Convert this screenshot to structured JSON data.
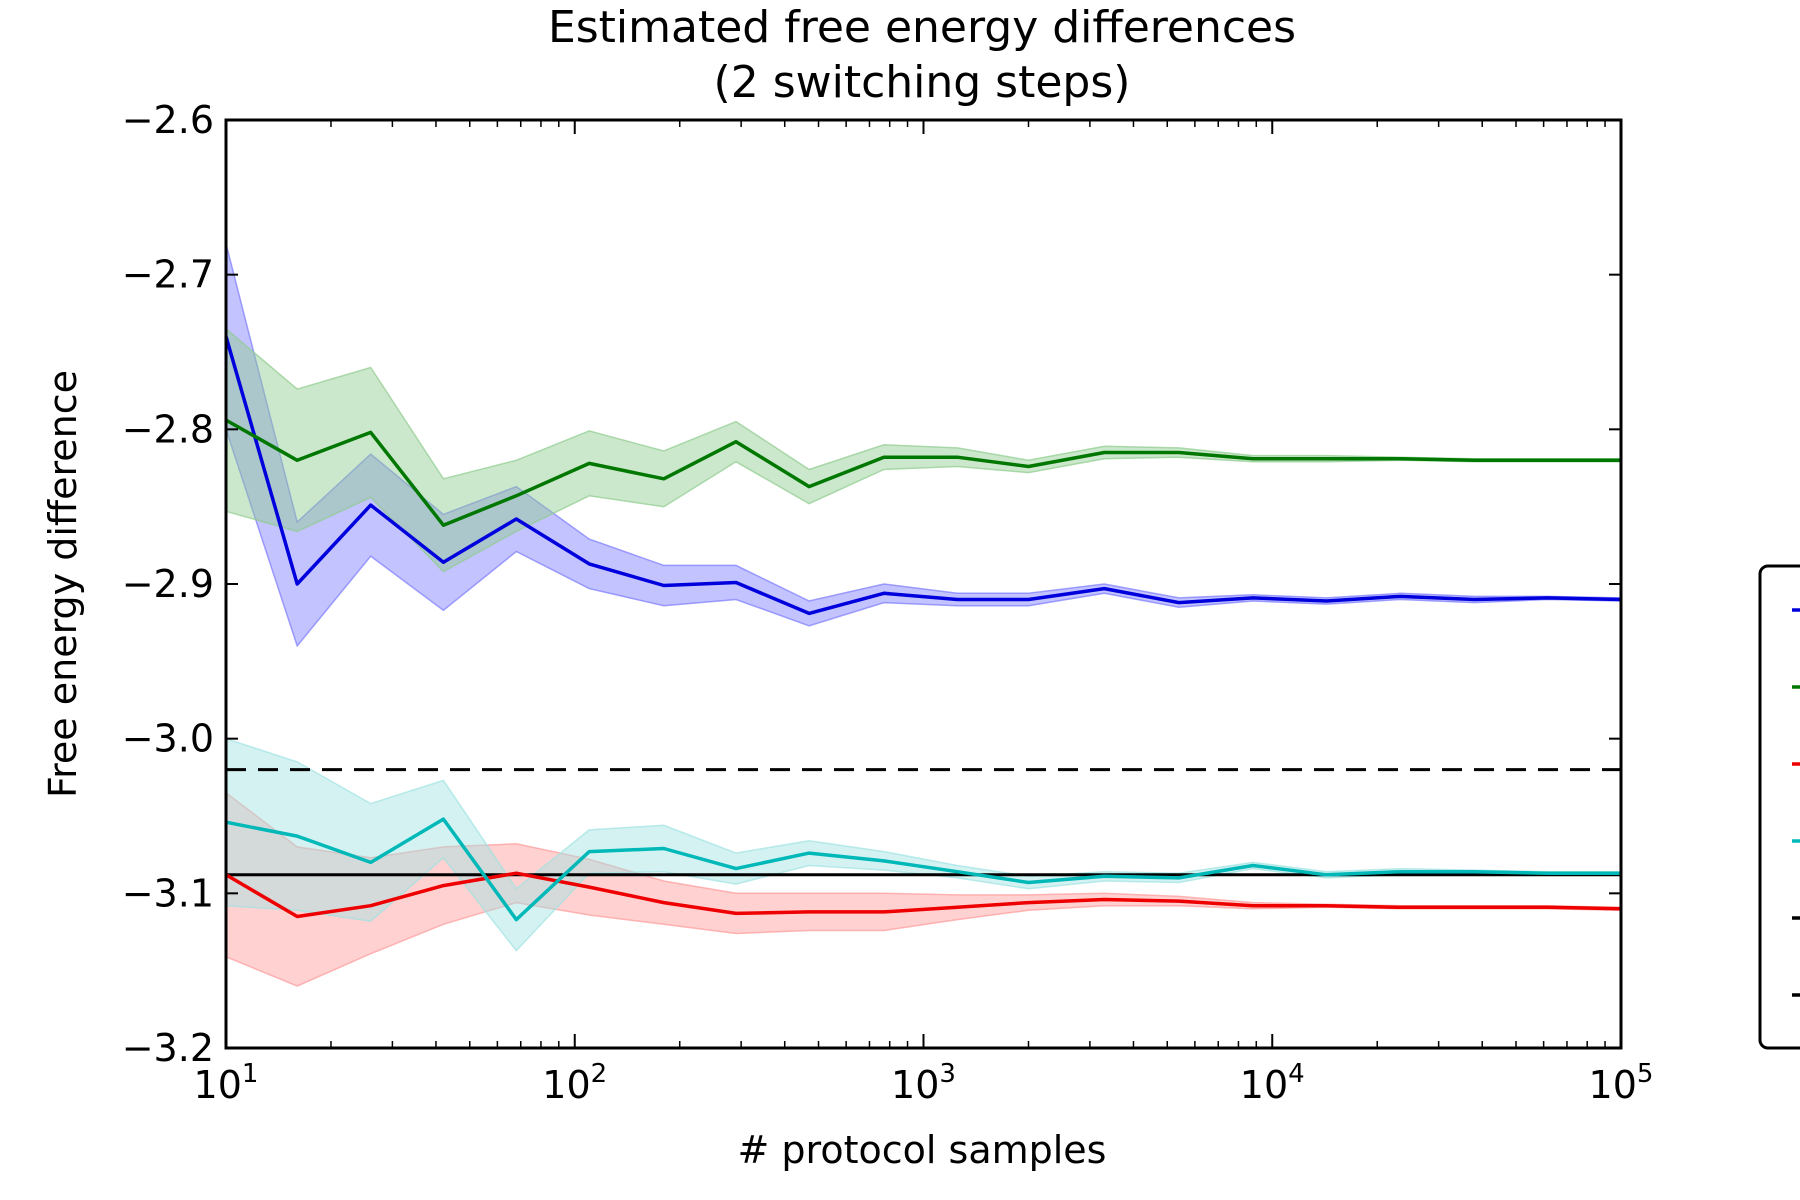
{
  "chart_data": {
    "type": "line",
    "title": "Estimated free energy differences",
    "subtitle": "(2 switching steps)",
    "xlabel": "# protocol samples",
    "ylabel": "Free energy difference",
    "xscale": "log",
    "xlim": [
      10,
      100000
    ],
    "ylim": [
      -3.2,
      -2.6
    ],
    "yticks": [
      "−2.6",
      "−2.7",
      "−2.8",
      "−2.9",
      "−3.0",
      "−3.1",
      "−3.2"
    ],
    "yticks_values": [
      -2.6,
      -2.7,
      -2.8,
      -2.9,
      -3.0,
      -3.1,
      -3.2
    ],
    "xticks": [
      {
        "value": 10,
        "base": "10",
        "exp": "1"
      },
      {
        "value": 100,
        "base": "10",
        "exp": "2"
      },
      {
        "value": 1000,
        "base": "10",
        "exp": "3"
      },
      {
        "value": 10000,
        "base": "10",
        "exp": "4"
      },
      {
        "value": 100000,
        "base": "10",
        "exp": "5"
      }
    ],
    "grid": false,
    "legend": "right",
    "x": [
      10,
      16,
      26,
      42,
      68,
      110,
      180,
      290,
      470,
      770,
      1250,
      2000,
      3300,
      5400,
      8800,
      14300,
      23300,
      38000,
      61700,
      100000
    ],
    "series": [
      {
        "color": "#0000dd",
        "fill": "#7b7bff",
        "values": [
          -2.74,
          -2.9,
          -2.849,
          -2.886,
          -2.858,
          -2.887,
          -2.901,
          -2.899,
          -2.919,
          -2.906,
          -2.91,
          -2.91,
          -2.903,
          -2.912,
          -2.909,
          -2.911,
          -2.908,
          -2.91,
          -2.909,
          -2.91
        ],
        "upper": [
          -2.68,
          -2.86,
          -2.816,
          -2.855,
          -2.837,
          -2.871,
          -2.888,
          -2.888,
          -2.911,
          -2.9,
          -2.906,
          -2.906,
          -2.9,
          -2.909,
          -2.907,
          -2.909,
          -2.906,
          -2.908,
          -2.908,
          -2.909
        ],
        "lower": [
          -2.8,
          -2.94,
          -2.882,
          -2.917,
          -2.879,
          -2.903,
          -2.914,
          -2.91,
          -2.927,
          -2.912,
          -2.914,
          -2.914,
          -2.906,
          -2.915,
          -2.911,
          -2.913,
          -2.91,
          -2.912,
          -2.91,
          -2.911
        ]
      },
      {
        "color": "#007700",
        "fill": "#8fcc8f",
        "values": [
          -2.794,
          -2.82,
          -2.802,
          -2.862,
          -2.843,
          -2.822,
          -2.832,
          -2.808,
          -2.837,
          -2.818,
          -2.818,
          -2.824,
          -2.815,
          -2.815,
          -2.819,
          -2.819,
          -2.819,
          -2.82,
          -2.82,
          -2.82
        ],
        "upper": [
          -2.735,
          -2.774,
          -2.76,
          -2.832,
          -2.82,
          -2.801,
          -2.814,
          -2.795,
          -2.826,
          -2.81,
          -2.812,
          -2.82,
          -2.811,
          -2.812,
          -2.817,
          -2.817,
          -2.818,
          -2.819,
          -2.819,
          -2.819
        ],
        "lower": [
          -2.853,
          -2.866,
          -2.844,
          -2.892,
          -2.866,
          -2.843,
          -2.85,
          -2.821,
          -2.848,
          -2.826,
          -2.824,
          -2.828,
          -2.819,
          -2.818,
          -2.821,
          -2.821,
          -2.82,
          -2.821,
          -2.821,
          -2.821
        ]
      },
      {
        "color": "#ee0000",
        "fill": "#ff9a9a",
        "values": [
          -3.088,
          -3.115,
          -3.108,
          -3.095,
          -3.087,
          -3.096,
          -3.106,
          -3.113,
          -3.112,
          -3.112,
          -3.109,
          -3.106,
          -3.104,
          -3.105,
          -3.108,
          -3.108,
          -3.109,
          -3.109,
          -3.109,
          -3.11
        ],
        "upper": [
          -3.035,
          -3.07,
          -3.077,
          -3.07,
          -3.068,
          -3.078,
          -3.092,
          -3.1,
          -3.1,
          -3.1,
          -3.101,
          -3.101,
          -3.1,
          -3.102,
          -3.106,
          -3.107,
          -3.108,
          -3.108,
          -3.108,
          -3.109
        ],
        "lower": [
          -3.141,
          -3.16,
          -3.139,
          -3.12,
          -3.106,
          -3.114,
          -3.12,
          -3.126,
          -3.124,
          -3.124,
          -3.117,
          -3.111,
          -3.108,
          -3.108,
          -3.11,
          -3.109,
          -3.11,
          -3.11,
          -3.11,
          -3.111
        ]
      },
      {
        "color": "#00b8b8",
        "fill": "#9fe3e3",
        "values": [
          -3.054,
          -3.063,
          -3.08,
          -3.052,
          -3.117,
          -3.073,
          -3.071,
          -3.084,
          -3.074,
          -3.079,
          -3.086,
          -3.093,
          -3.089,
          -3.09,
          -3.082,
          -3.088,
          -3.086,
          -3.086,
          -3.087,
          -3.087
        ],
        "upper": [
          -3.0,
          -3.015,
          -3.042,
          -3.027,
          -3.097,
          -3.059,
          -3.056,
          -3.074,
          -3.066,
          -3.073,
          -3.082,
          -3.089,
          -3.086,
          -3.087,
          -3.08,
          -3.086,
          -3.084,
          -3.085,
          -3.086,
          -3.086
        ],
        "lower": [
          -3.108,
          -3.111,
          -3.118,
          -3.077,
          -3.137,
          -3.087,
          -3.086,
          -3.094,
          -3.082,
          -3.085,
          -3.09,
          -3.097,
          -3.092,
          -3.093,
          -3.084,
          -3.09,
          -3.088,
          -3.087,
          -3.088,
          -3.088
        ]
      }
    ],
    "reference_lines": [
      {
        "value": -3.02,
        "style": "dashed",
        "color": "#000000"
      },
      {
        "value": -3.088,
        "style": "solid",
        "color": "#000000"
      }
    ]
  }
}
